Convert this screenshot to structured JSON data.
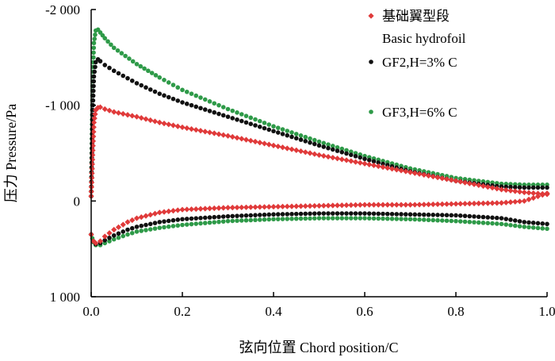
{
  "chart_data": {
    "type": "scatter",
    "title": "",
    "xlabel": "弦向位置 Chord position/C",
    "ylabel": "压力 Pressure/Pa",
    "xlim": [
      0.0,
      1.0
    ],
    "ylim": [
      1000,
      -2000
    ],
    "y_axis_inverted": true,
    "grid": false,
    "legend_position": "top-right",
    "x_ticks": [
      "0.0",
      "0.2",
      "0.4",
      "0.6",
      "0.8",
      "1.0"
    ],
    "y_ticks": [
      "-2 000",
      "-1 000",
      "0",
      "1 000"
    ],
    "legend": [
      {
        "label": "基础翼型段 Basic hydrofoil",
        "color": "#e03a3a",
        "marker": "diamond"
      },
      {
        "label": "GF2,H=3% C",
        "color": "#111111",
        "marker": "circle"
      },
      {
        "label": "GF3,H=6% C",
        "color": "#2e9a48",
        "marker": "circle"
      }
    ],
    "series": [
      {
        "name": "基础翼型段 Basic hydrofoil",
        "color": "#e03a3a",
        "marker": "diamond",
        "suction_side": {
          "x": [
            0.0,
            0.003,
            0.006,
            0.01,
            0.015,
            0.02,
            0.03,
            0.05,
            0.1,
            0.15,
            0.2,
            0.3,
            0.4,
            0.5,
            0.6,
            0.7,
            0.8,
            0.9,
            0.95,
            1.0
          ],
          "y": [
            -50,
            -480,
            -820,
            -950,
            -975,
            -980,
            -960,
            -930,
            -880,
            -820,
            -770,
            -680,
            -580,
            -480,
            -390,
            -300,
            -210,
            -120,
            -90,
            -70
          ]
        },
        "pressure_side": {
          "x": [
            0.0,
            0.005,
            0.01,
            0.02,
            0.03,
            0.05,
            0.08,
            0.1,
            0.15,
            0.2,
            0.3,
            0.4,
            0.5,
            0.6,
            0.7,
            0.8,
            0.9,
            0.95,
            1.0
          ],
          "y": [
            350,
            420,
            440,
            420,
            370,
            300,
            220,
            180,
            120,
            90,
            70,
            60,
            50,
            40,
            40,
            30,
            20,
            0,
            -80
          ]
        }
      },
      {
        "name": "GF2,H=3% C",
        "color": "#111111",
        "marker": "circle",
        "suction_side": {
          "x": [
            0.0,
            0.003,
            0.006,
            0.01,
            0.015,
            0.02,
            0.03,
            0.05,
            0.1,
            0.15,
            0.2,
            0.3,
            0.4,
            0.5,
            0.6,
            0.7,
            0.8,
            0.9,
            0.95,
            1.0
          ],
          "y": [
            -50,
            -900,
            -1300,
            -1450,
            -1480,
            -1460,
            -1420,
            -1360,
            -1230,
            -1120,
            -1030,
            -880,
            -730,
            -580,
            -440,
            -310,
            -210,
            -150,
            -140,
            -140
          ]
        },
        "pressure_side": {
          "x": [
            0.0,
            0.005,
            0.01,
            0.02,
            0.03,
            0.05,
            0.08,
            0.1,
            0.15,
            0.2,
            0.3,
            0.4,
            0.5,
            0.6,
            0.7,
            0.8,
            0.9,
            0.95,
            1.0
          ],
          "y": [
            350,
            420,
            450,
            440,
            410,
            360,
            300,
            270,
            220,
            190,
            160,
            140,
            130,
            130,
            140,
            150,
            180,
            220,
            240
          ]
        }
      },
      {
        "name": "GF3,H=6% C",
        "color": "#2e9a48",
        "marker": "circle",
        "suction_side": {
          "x": [
            0.0,
            0.003,
            0.006,
            0.01,
            0.015,
            0.02,
            0.03,
            0.05,
            0.1,
            0.15,
            0.2,
            0.3,
            0.4,
            0.5,
            0.6,
            0.7,
            0.8,
            0.9,
            0.95,
            1.0
          ],
          "y": [
            -50,
            -1200,
            -1650,
            -1780,
            -1790,
            -1760,
            -1700,
            -1600,
            -1430,
            -1290,
            -1160,
            -960,
            -780,
            -620,
            -470,
            -340,
            -240,
            -180,
            -170,
            -170
          ]
        },
        "pressure_side": {
          "x": [
            0.0,
            0.005,
            0.01,
            0.02,
            0.03,
            0.05,
            0.08,
            0.1,
            0.15,
            0.2,
            0.3,
            0.4,
            0.5,
            0.6,
            0.7,
            0.8,
            0.9,
            0.95,
            1.0
          ],
          "y": [
            350,
            430,
            460,
            460,
            440,
            400,
            350,
            320,
            280,
            250,
            210,
            190,
            180,
            180,
            190,
            210,
            240,
            270,
            290
          ]
        }
      }
    ]
  }
}
